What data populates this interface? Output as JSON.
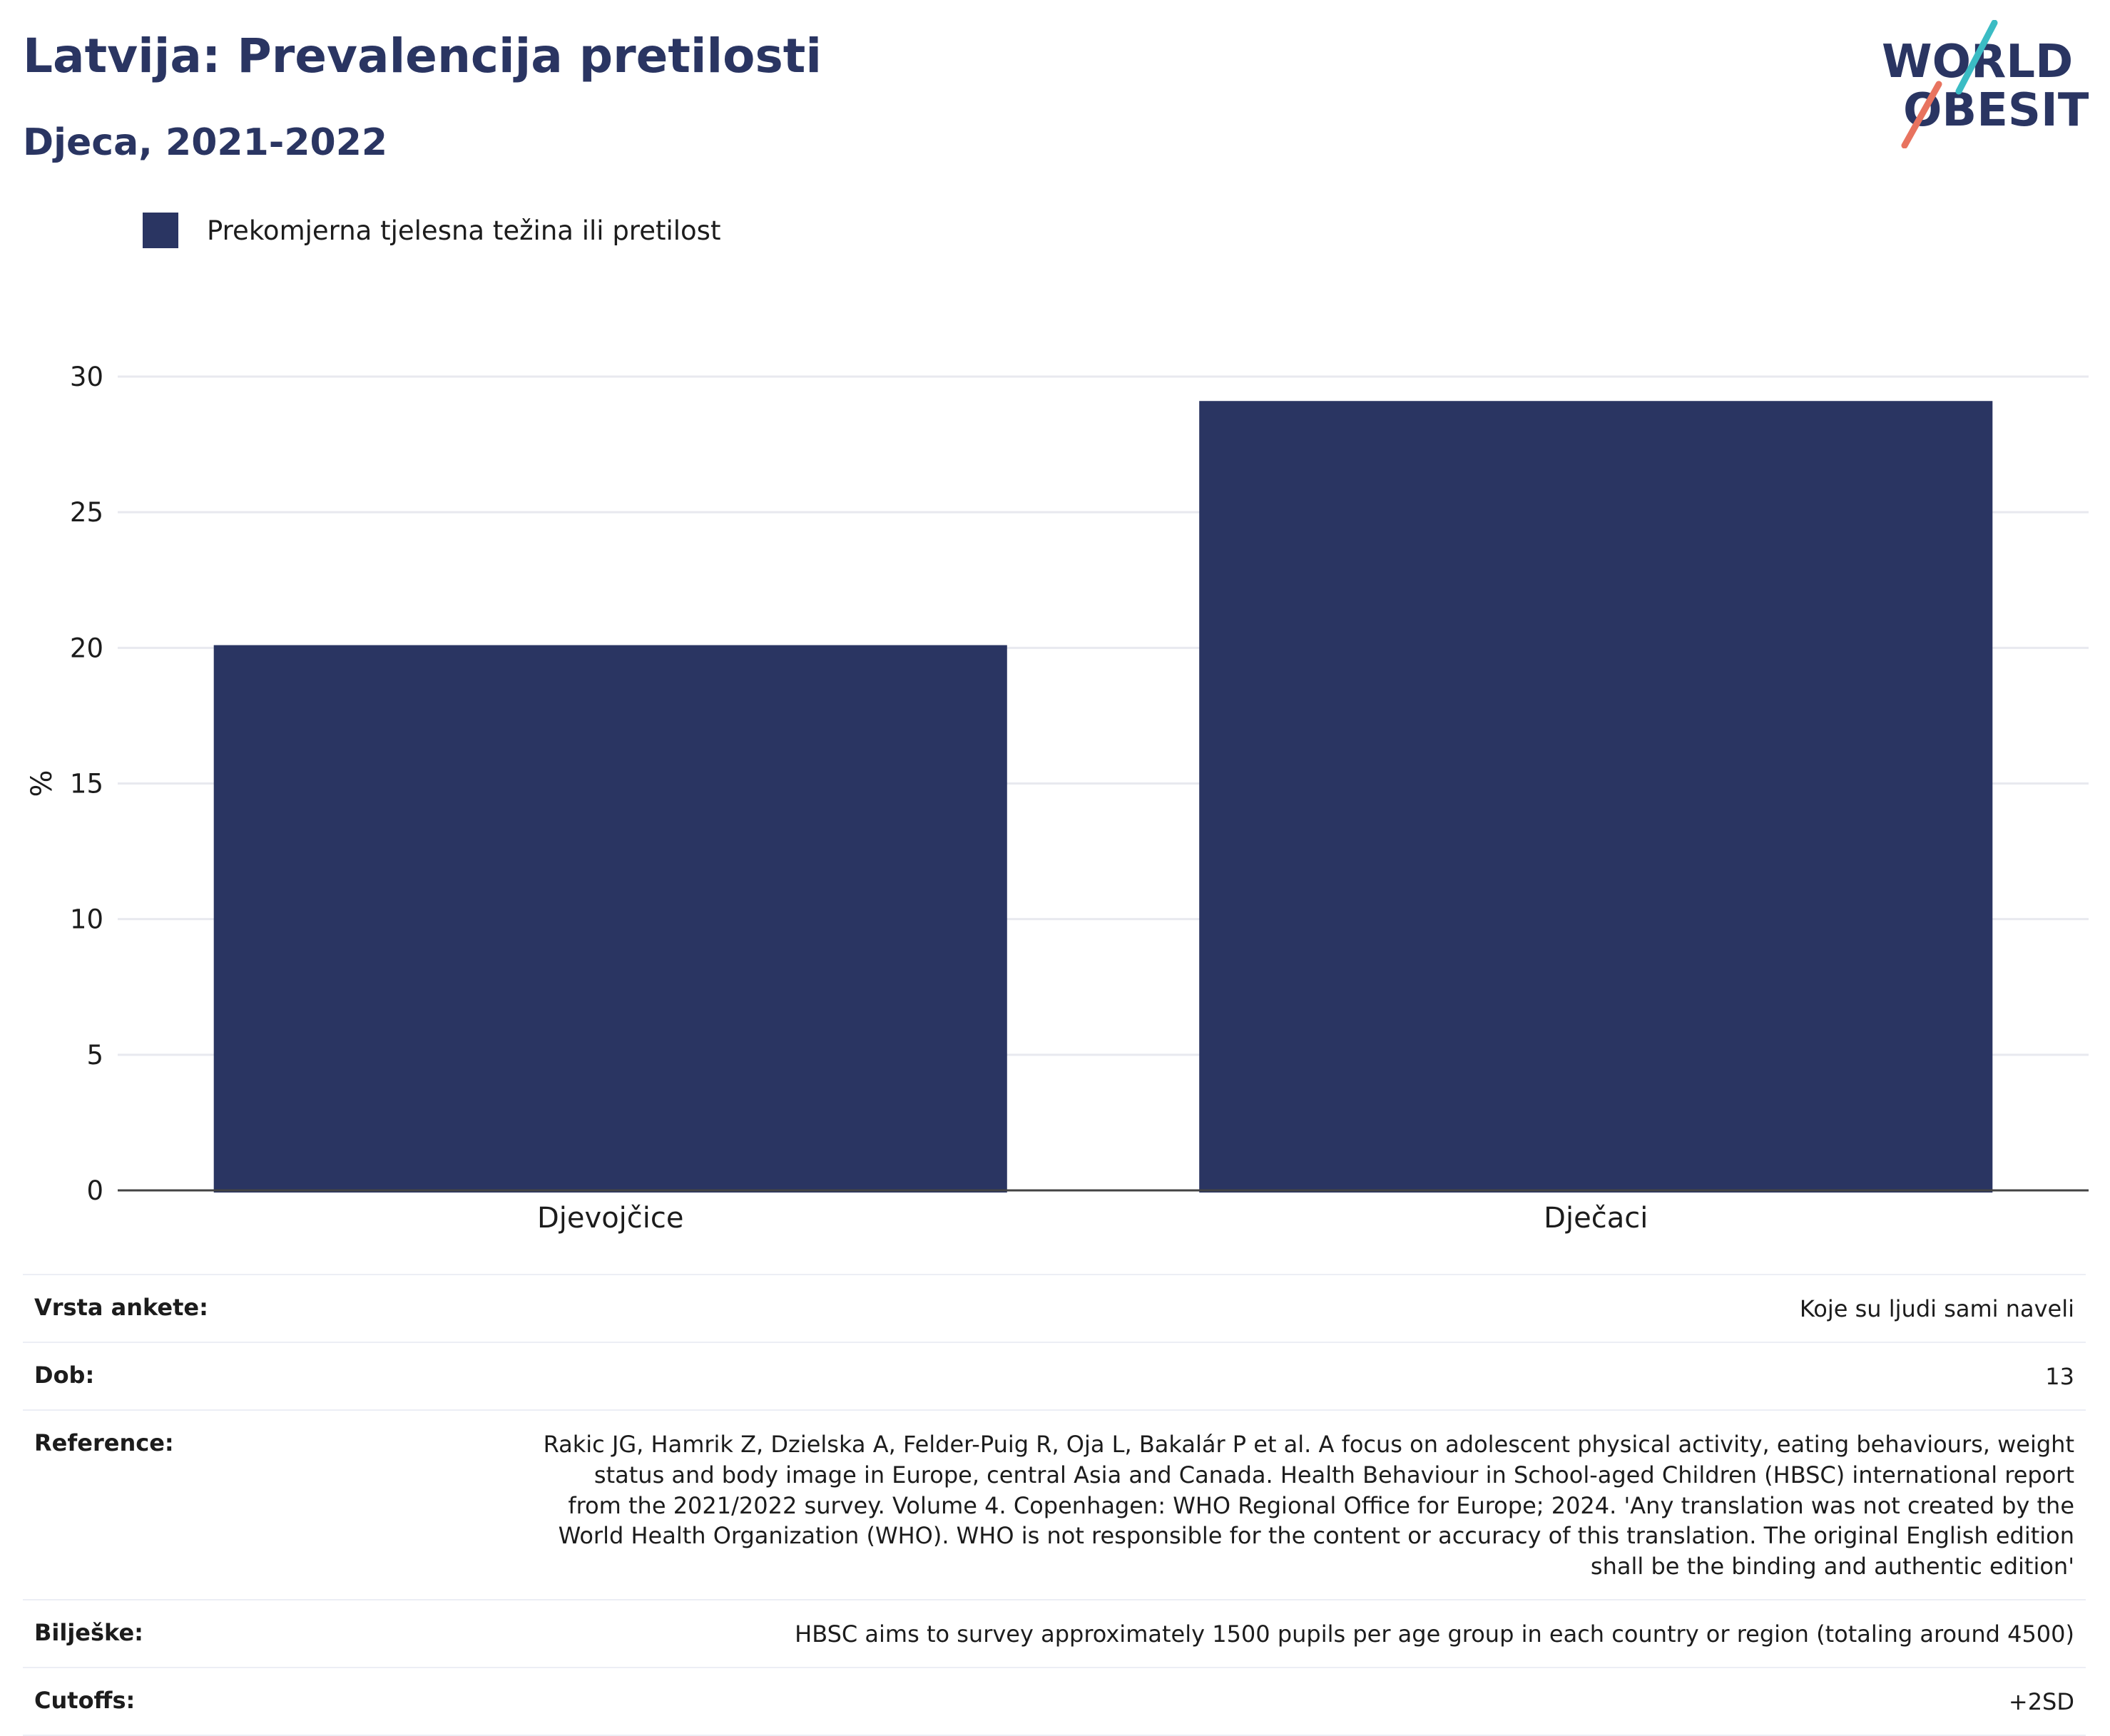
{
  "header": {
    "title": "Latvija: Prevalencija pretilosti",
    "subtitle": "Djeca, 2021-2022"
  },
  "logo": {
    "line1": "WORLD",
    "line2": "OBESITY",
    "colors": {
      "text": "#2a3562",
      "teal": "#3bbcc4",
      "coral": "#e8735f"
    }
  },
  "legend": {
    "label": "Prekomjerna tjelesna težina ili pretilost",
    "color": "#2a3562"
  },
  "chart_data": {
    "type": "bar",
    "categories": [
      "Djevojčice",
      "Dječaci"
    ],
    "series": [
      {
        "name": "Prekomjerna tjelesna težina ili pretilost",
        "values": [
          20.1,
          29.1
        ],
        "color": "#2a3562"
      }
    ],
    "xlabel": "",
    "ylabel": "%",
    "ylim": [
      0,
      30
    ],
    "yticks": [
      0,
      5,
      10,
      15,
      20,
      25,
      30
    ],
    "grid": true,
    "legend_position": "top-left"
  },
  "meta": [
    {
      "key": "Vrsta ankete:",
      "value": "Koje su ljudi sami naveli"
    },
    {
      "key": "Dob:",
      "value": "13"
    },
    {
      "key": "Reference:",
      "value": "Rakic JG, Hamrik Z, Dzielska A, Felder-Puig R, Oja L, Bakalár P et al. A focus on adolescent physical activity, eating behaviours, weight status and body image in Europe, central Asia and Canada. Health Behaviour in School-aged Children (HBSC) international report from the 2021/2022 survey. Volume 4. Copenhagen: WHO Regional Office for Europe; 2024. 'Any translation was not created by the World Health Organization (WHO). WHO is not responsible for the content or accuracy of this translation. The original English edition shall be the binding and authentic edition'"
    },
    {
      "key": "Bilješke:",
      "value": "HBSC aims to survey approximately 1500 pupils per age group in each country or region (totaling around 4500)"
    },
    {
      "key": "Cutoffs:",
      "value": "+2SD"
    }
  ]
}
